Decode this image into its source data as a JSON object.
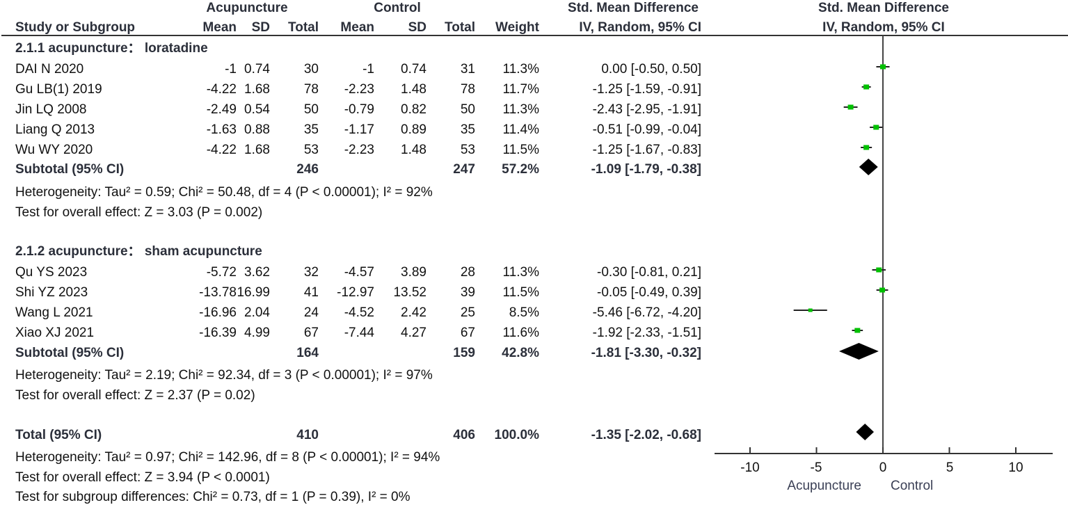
{
  "header": {
    "group1": "Acupuncture",
    "group2": "Control",
    "effect_title": "Std. Mean Difference",
    "plot_title": "Std. Mean Difference",
    "cols": {
      "study": "Study or Subgroup",
      "mean1": "Mean",
      "sd1": "SD",
      "total1": "Total",
      "mean2": "Mean",
      "sd2": "SD",
      "total2": "Total",
      "weight": "Weight",
      "ci": "IV, Random, 95% CI",
      "plot_ci": "IV, Random, 95% CI"
    }
  },
  "subgroups": [
    {
      "title": "2.1.1 acupuncture： loratadine",
      "studies": [
        {
          "name": "DAI N 2020",
          "mean1": "-1",
          "sd1": "0.74",
          "n1": "30",
          "mean2": "-1",
          "sd2": "0.74",
          "n2": "31",
          "weight": "11.3%",
          "ci": "0.00 [-0.50, 0.50]",
          "est": 0.0,
          "lo": -0.5,
          "hi": 0.5
        },
        {
          "name": "Gu LB(1) 2019",
          "mean1": "-4.22",
          "sd1": "1.68",
          "n1": "78",
          "mean2": "-2.23",
          "sd2": "1.48",
          "n2": "78",
          "weight": "11.7%",
          "ci": "-1.25 [-1.59, -0.91]",
          "est": -1.25,
          "lo": -1.59,
          "hi": -0.91
        },
        {
          "name": "Jin LQ 2008",
          "mean1": "-2.49",
          "sd1": "0.54",
          "n1": "50",
          "mean2": "-0.79",
          "sd2": "0.82",
          "n2": "50",
          "weight": "11.3%",
          "ci": "-2.43 [-2.95, -1.91]",
          "est": -2.43,
          "lo": -2.95,
          "hi": -1.91
        },
        {
          "name": "Liang Q 2013",
          "mean1": "-1.63",
          "sd1": "0.88",
          "n1": "35",
          "mean2": "-1.17",
          "sd2": "0.89",
          "n2": "35",
          "weight": "11.4%",
          "ci": "-0.51 [-0.99, -0.04]",
          "est": -0.51,
          "lo": -0.99,
          "hi": -0.04
        },
        {
          "name": "Wu WY 2020",
          "mean1": "-4.22",
          "sd1": "1.68",
          "n1": "53",
          "mean2": "-2.23",
          "sd2": "1.48",
          "n2": "53",
          "weight": "11.5%",
          "ci": "-1.25 [-1.67, -0.83]",
          "est": -1.25,
          "lo": -1.67,
          "hi": -0.83
        }
      ],
      "subtotal": {
        "label": "Subtotal (95% CI)",
        "n1": "246",
        "n2": "247",
        "weight": "57.2%",
        "ci": "-1.09 [-1.79, -0.38]",
        "est": -1.09,
        "lo": -1.79,
        "hi": -0.38
      },
      "heterogeneity": "Heterogeneity: Tau² = 0.59; Chi² = 50.48, df = 4 (P < 0.00001); I² = 92%",
      "overall": "Test for overall effect: Z = 3.03 (P = 0.002)"
    },
    {
      "title": "2.1.2 acupuncture： sham acupuncture",
      "studies": [
        {
          "name": "Qu YS 2023",
          "mean1": "-5.72",
          "sd1": "3.62",
          "n1": "32",
          "mean2": "-4.57",
          "sd2": "3.89",
          "n2": "28",
          "weight": "11.3%",
          "ci": "-0.30 [-0.81, 0.21]",
          "est": -0.3,
          "lo": -0.81,
          "hi": 0.21
        },
        {
          "name": "Shi YZ 2023",
          "mean1": "-13.78",
          "sd1": "16.99",
          "n1": "41",
          "mean2": "-12.97",
          "sd2": "13.52",
          "n2": "39",
          "weight": "11.5%",
          "ci": "-0.05 [-0.49, 0.39]",
          "est": -0.05,
          "lo": -0.49,
          "hi": 0.39
        },
        {
          "name": "Wang L 2021",
          "mean1": "-16.96",
          "sd1": "2.04",
          "n1": "24",
          "mean2": "-4.52",
          "sd2": "2.42",
          "n2": "25",
          "weight": "8.5%",
          "ci": "-5.46 [-6.72, -4.20]",
          "est": -5.46,
          "lo": -6.72,
          "hi": -4.2
        },
        {
          "name": "Xiao XJ 2021",
          "mean1": "-16.39",
          "sd1": "4.99",
          "n1": "67",
          "mean2": "-7.44",
          "sd2": "4.27",
          "n2": "67",
          "weight": "11.6%",
          "ci": "-1.92 [-2.33, -1.51]",
          "est": -1.92,
          "lo": -2.33,
          "hi": -1.51
        }
      ],
      "subtotal": {
        "label": "Subtotal (95% CI)",
        "n1": "164",
        "n2": "159",
        "weight": "42.8%",
        "ci": "-1.81 [-3.30, -0.32]",
        "est": -1.81,
        "lo": -3.3,
        "hi": -0.32
      },
      "heterogeneity": "Heterogeneity: Tau² = 2.19; Chi² = 92.34, df = 3 (P < 0.00001); I² = 97%",
      "overall": "Test for overall effect: Z = 2.37 (P = 0.02)"
    }
  ],
  "total": {
    "label": "Total (95% CI)",
    "n1": "410",
    "n2": "406",
    "weight": "100.0%",
    "ci": "-1.35 [-2.02, -0.68]",
    "est": -1.35,
    "lo": -2.02,
    "hi": -0.68,
    "heterogeneity": "Heterogeneity: Tau² = 0.97; Chi² = 142.96, df = 8 (P < 0.00001); I² = 94%",
    "overall": "Test for overall effect: Z = 3.94 (P < 0.0001)",
    "subgroup_diff": "Test for subgroup differences: Chi² = 0.73, df = 1 (P = 0.39), I² = 0%"
  },
  "axis": {
    "ticks": [
      "-10",
      "-5",
      "0",
      "5",
      "10"
    ],
    "left_label": "Acupuncture",
    "right_label": "Control"
  },
  "colors": {
    "header_text": "#2b2f3a",
    "study_marker": "#00c000",
    "diamond": "#000000",
    "lines": "#333333"
  },
  "chart_data": {
    "type": "forest",
    "title": "Std. Mean Difference IV, Random, 95% CI",
    "xlabel": "Acupuncture   Control",
    "xlim": [
      -12.5,
      12.8
    ],
    "xticks": [
      -10,
      -5,
      0,
      5,
      10
    ],
    "categories": [
      "DAI N 2020",
      "Gu LB(1) 2019",
      "Jin LQ 2008",
      "Liang Q 2013",
      "Wu WY 2020",
      "Subtotal 2.1.1",
      "Qu YS 2023",
      "Shi YZ 2023",
      "Wang L 2021",
      "Xiao XJ 2021",
      "Subtotal 2.1.2",
      "Total"
    ],
    "series": [
      {
        "name": "SMD",
        "values": [
          0.0,
          -1.25,
          -2.43,
          -0.51,
          -1.25,
          -1.09,
          -0.3,
          -0.05,
          -5.46,
          -1.92,
          -1.81,
          -1.35
        ]
      },
      {
        "name": "CI lower",
        "values": [
          -0.5,
          -1.59,
          -2.95,
          -0.99,
          -1.67,
          -1.79,
          -0.81,
          -0.49,
          -6.72,
          -2.33,
          -3.3,
          -2.02
        ]
      },
      {
        "name": "CI upper",
        "values": [
          0.5,
          -0.91,
          -1.91,
          -0.04,
          -0.83,
          -0.38,
          0.21,
          0.39,
          -4.2,
          -1.51,
          -0.32,
          -0.68
        ]
      },
      {
        "name": "Weight %",
        "values": [
          11.3,
          11.7,
          11.3,
          11.4,
          11.5,
          57.2,
          11.3,
          11.5,
          8.5,
          11.6,
          42.8,
          100.0
        ]
      }
    ]
  }
}
